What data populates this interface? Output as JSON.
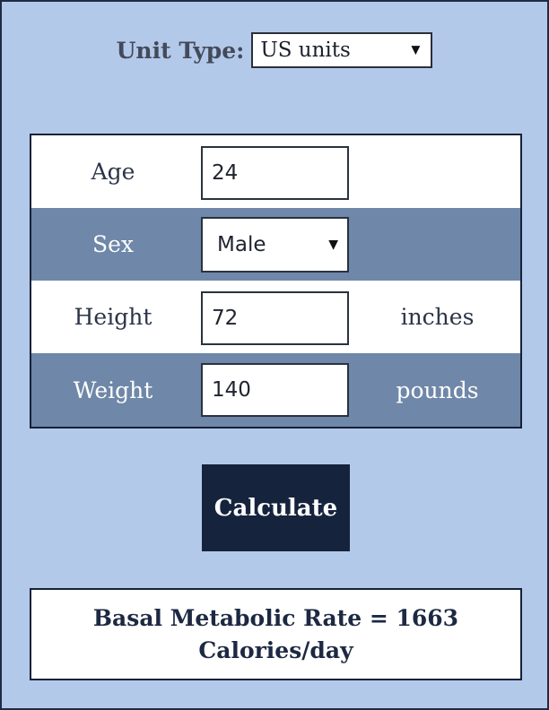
{
  "unit_type": {
    "label": "Unit Type:",
    "selected": "US units"
  },
  "form": {
    "age": {
      "label": "Age",
      "value": "24"
    },
    "sex": {
      "label": "Sex",
      "selected": "Male"
    },
    "height": {
      "label": "Height",
      "value": "72",
      "unit": "inches"
    },
    "weight": {
      "label": "Weight",
      "value": "140",
      "unit": "pounds"
    }
  },
  "calculate_label": "Calculate",
  "result": {
    "prefix": "Basal Metabolic Rate = ",
    "value": "1663",
    "unit": "Calories/day"
  },
  "colors": {
    "page_background": "#b3c9ea",
    "row_dark": "#6f87a8",
    "button": "#16233d"
  },
  "icons": {
    "dropdown": "chevron-down-icon"
  }
}
